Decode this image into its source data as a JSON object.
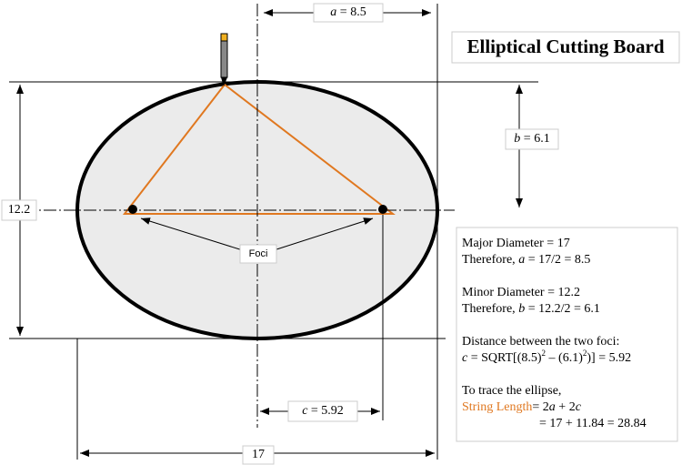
{
  "title": "Elliptical Cutting Board",
  "labels": {
    "a": [
      {
        "text": "a",
        "style": "italic"
      },
      {
        "text": " = 8.5"
      }
    ],
    "b": [
      {
        "text": "b",
        "style": "italic"
      },
      {
        "text": " = 6.1"
      }
    ],
    "c": [
      {
        "text": "c",
        "style": "italic"
      },
      {
        "text": " = 5.92"
      }
    ],
    "minor": [
      {
        "text": "12.2"
      }
    ],
    "major": [
      {
        "text": "17"
      }
    ],
    "foci": [
      {
        "text": "Foci"
      }
    ]
  },
  "notes": [
    [
      {
        "text": "Major Diameter = 17"
      }
    ],
    [
      {
        "text": "Therefore, "
      },
      {
        "text": "a",
        "style": "italic"
      },
      {
        "text": " = 17/2 = 8.5"
      }
    ],
    [
      {
        "text": "Minor Diameter = 12.2"
      }
    ],
    [
      {
        "text": "Therefore, "
      },
      {
        "text": "b",
        "style": "italic"
      },
      {
        "text": " = 12.2/2 = 6.1"
      }
    ],
    [
      {
        "text": "Distance between the two foci:"
      }
    ],
    [
      {
        "text": "c",
        "style": "italic"
      },
      {
        "text": " = SQRT[(8.5)"
      },
      {
        "text": "2",
        "style": "sup"
      },
      {
        "text": " – (6.1)"
      },
      {
        "text": "2",
        "style": "sup"
      },
      {
        "text": ")] = 5.92"
      }
    ],
    [
      {
        "text": "To trace the ellipse,"
      }
    ],
    [
      {
        "text": "String Length",
        "style": "orange"
      },
      {
        "text": "= 2"
      },
      {
        "text": "a",
        "style": "italic"
      },
      {
        "text": " + 2"
      },
      {
        "text": "c",
        "style": "italic"
      }
    ],
    [
      {
        "text": "= 17 + 11.84 = 28.84"
      }
    ]
  ]
}
